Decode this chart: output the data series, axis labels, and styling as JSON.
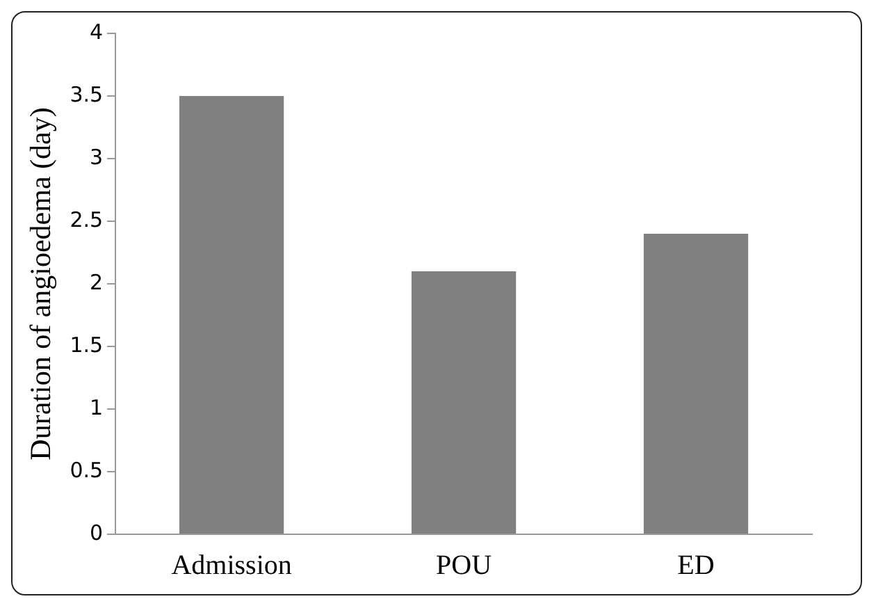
{
  "chart_data": {
    "type": "bar",
    "ylabel": "Duration of angioedema (day)",
    "categories": [
      "Admission",
      "POU",
      "ED"
    ],
    "values": [
      3.5,
      2.1,
      2.4
    ],
    "color": "#808080",
    "ylim": [
      0,
      4
    ],
    "yticks": [
      0,
      0.5,
      1,
      1.5,
      2,
      2.5,
      3,
      3.5,
      4
    ],
    "grid": false,
    "legend": false
  }
}
